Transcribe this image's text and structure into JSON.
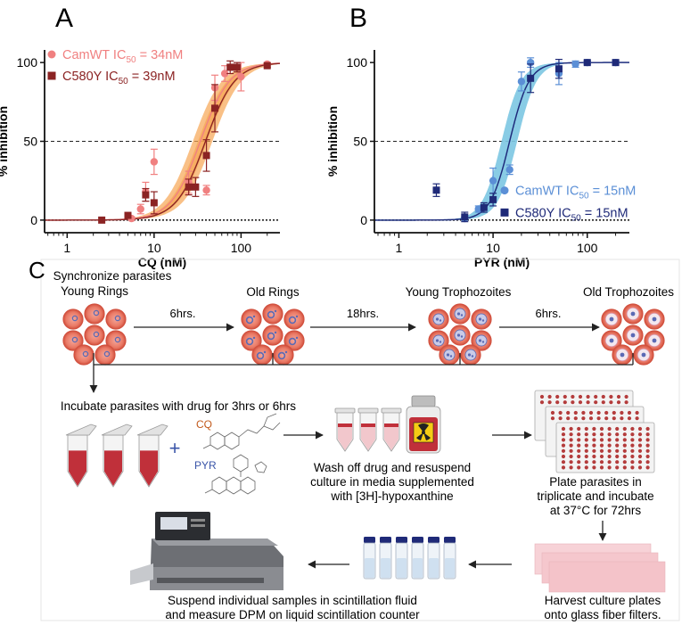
{
  "chart_data": [
    {
      "type": "scatter",
      "panel_letter": "A",
      "xlabel": "CQ (nM)",
      "ylabel": "% inhibition",
      "xscale": "log",
      "xlim": [
        0.55,
        280
      ],
      "ylim": [
        -8,
        108
      ],
      "xticks": [
        1,
        10,
        100
      ],
      "xtick_labels": [
        "1",
        "10",
        "100"
      ],
      "yticks": [
        0,
        50,
        100
      ],
      "ytick_labels": [
        "0",
        "50",
        "100"
      ],
      "reference_lines": [
        0,
        50
      ],
      "legend_position": "top-left",
      "series": [
        {
          "name": "CamWT",
          "legend_prefix": "CamWT IC",
          "legend_sub": "50",
          "legend_suffix": " = 34nM",
          "ic50": 34,
          "marker": "circle",
          "color": "#f08080",
          "points": [
            {
              "x": 5.5,
              "y": 1,
              "err": 1
            },
            {
              "x": 7,
              "y": 7,
              "err": 3
            },
            {
              "x": 8,
              "y": 18,
              "err": 6
            },
            {
              "x": 10,
              "y": 37,
              "err": 8
            },
            {
              "x": 25,
              "y": 24,
              "err": 7
            },
            {
              "x": 40,
              "y": 19,
              "err": 3
            },
            {
              "x": 50,
              "y": 84,
              "err": 8
            },
            {
              "x": 65,
              "y": 93,
              "err": 5
            },
            {
              "x": 100,
              "y": 91,
              "err": 9
            },
            {
              "x": 200,
              "y": 99,
              "err": 1
            }
          ]
        },
        {
          "name": "C580Y",
          "legend_prefix": "C580Y IC",
          "legend_sub": "50",
          "legend_suffix": " = 39nM",
          "ic50": 39,
          "marker": "square",
          "color": "#8b2323",
          "points": [
            {
              "x": 2.5,
              "y": 0,
              "err": 0
            },
            {
              "x": 5,
              "y": 3,
              "err": 1
            },
            {
              "x": 8,
              "y": 16,
              "err": 4
            },
            {
              "x": 10,
              "y": 11,
              "err": 7
            },
            {
              "x": 25,
              "y": 21,
              "err": 5
            },
            {
              "x": 30,
              "y": 21,
              "err": 6
            },
            {
              "x": 40,
              "y": 41,
              "err": 10
            },
            {
              "x": 50,
              "y": 71,
              "err": 15
            },
            {
              "x": 75,
              "y": 97,
              "err": 4
            },
            {
              "x": 90,
              "y": 97,
              "err": 3
            },
            {
              "x": 200,
              "y": 98,
              "err": 1
            }
          ]
        }
      ],
      "fit_band_color": "#f7a552"
    },
    {
      "type": "scatter",
      "panel_letter": "B",
      "xlabel": "PYR (nM)",
      "ylabel": "% inhibition",
      "xscale": "log",
      "xlim": [
        0.55,
        280
      ],
      "ylim": [
        -8,
        108
      ],
      "xticks": [
        1,
        10,
        100
      ],
      "xtick_labels": [
        "1",
        "10",
        "100"
      ],
      "yticks": [
        0,
        50,
        100
      ],
      "ytick_labels": [
        "0",
        "50",
        "100"
      ],
      "reference_lines": [
        0,
        50
      ],
      "legend_position": "middle-right",
      "series": [
        {
          "name": "CamWT",
          "legend_prefix": "CamWT IC",
          "legend_sub": "50",
          "legend_suffix": " = 15nM",
          "ic50": 15,
          "marker": "circle",
          "color": "#5b8fd6",
          "points": [
            {
              "x": 5,
              "y": 1,
              "err": 1
            },
            {
              "x": 7,
              "y": 7,
              "err": 2
            },
            {
              "x": 10,
              "y": 25,
              "err": 8
            },
            {
              "x": 15,
              "y": 32,
              "err": 3
            },
            {
              "x": 20,
              "y": 88,
              "err": 6
            },
            {
              "x": 25,
              "y": 100,
              "err": 3
            },
            {
              "x": 50,
              "y": 93,
              "err": 7
            },
            {
              "x": 75,
              "y": 99,
              "err": 2
            },
            {
              "x": 100,
              "y": 100,
              "err": 1
            },
            {
              "x": 200,
              "y": 100,
              "err": 1
            }
          ]
        },
        {
          "name": "C580Y",
          "legend_prefix": "C580Y IC",
          "legend_sub": "50",
          "legend_suffix": " = 15nM",
          "ic50": 15,
          "marker": "square",
          "color": "#1f2a78",
          "points": [
            {
              "x": 2.5,
              "y": 19,
              "err": 4
            },
            {
              "x": 5,
              "y": 2,
              "err": 3
            },
            {
              "x": 8,
              "y": 8,
              "err": 3
            },
            {
              "x": 10,
              "y": 13,
              "err": 4
            },
            {
              "x": 25,
              "y": 90,
              "err": 9
            },
            {
              "x": 50,
              "y": 96,
              "err": 6
            },
            {
              "x": 100,
              "y": 100,
              "err": 1
            },
            {
              "x": 200,
              "y": 100,
              "err": 1
            }
          ]
        }
      ],
      "fit_band_color": "#7ec8e3"
    }
  ],
  "panel_c": {
    "letter": "C",
    "stage_labels": {
      "synchronize": "Synchronize parasites",
      "young_rings": "Young Rings",
      "old_rings": "Old Rings",
      "young_troph": "Young Trophozoites",
      "old_troph": "Old Trophozoites"
    },
    "time_labels": {
      "t1": "6hrs.",
      "t2": "18hrs.",
      "t3": "6hrs."
    },
    "incubate_label": "Incubate parasites with drug for 3hrs or 6hrs",
    "drug_labels": {
      "plus": "+",
      "cq": "CQ",
      "pyr": "PYR"
    },
    "wash_lines": [
      "Wash off drug and resuspend",
      "culture in media supplemented",
      "with [3H]-hypoxanthine"
    ],
    "plate_lines": [
      "Plate parasites in",
      "triplicate and incubate",
      "at 37°C for 72hrs"
    ],
    "harvest_lines": [
      "Harvest culture plates",
      "onto glass fiber filters."
    ],
    "suspend_lines": [
      "Suspend individual samples in scintillation fluid",
      "and measure DPM on liquid scintillation counter"
    ],
    "colors": {
      "rbc": "#e8705c",
      "rbc_rim": "#d2513f",
      "parasite": "#5a6ab5",
      "plate_dot": "#b43c3c",
      "filter": "#f4c3c9",
      "tube_liquid": "#c0303a",
      "radio_yellow": "#f5cc15"
    }
  }
}
